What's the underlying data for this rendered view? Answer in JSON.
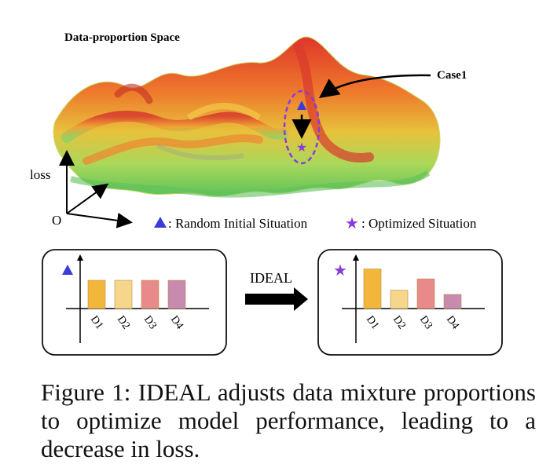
{
  "surface": {
    "title": "Data-proportion Space",
    "case_label": "Case1",
    "axis_y_label": "loss",
    "origin_label": "O"
  },
  "legend": {
    "triangle_text": ": Random Initial Situation",
    "star_text": ": Optimized Situation",
    "triangle_color": "#3b3bd9",
    "star_color": "#8a3bd9"
  },
  "arrow_label": "IDEAL",
  "chart_data": [
    {
      "type": "bar",
      "categories": [
        "D1",
        "D2",
        "D3",
        "D4"
      ],
      "values": [
        1.0,
        1.0,
        1.0,
        1.0
      ],
      "colors": [
        "#f2b63a",
        "#f6d68a",
        "#e88a8a",
        "#c98ab0"
      ],
      "marker": "triangle"
    },
    {
      "type": "bar",
      "categories": [
        "D1",
        "D2",
        "D3",
        "D4"
      ],
      "values": [
        1.4,
        0.65,
        1.05,
        0.5
      ],
      "colors": [
        "#f2b63a",
        "#f6d68a",
        "#e88a8a",
        "#c98ab0"
      ],
      "marker": "star"
    }
  ],
  "caption": "Figure 1: IDEAL adjusts data mixture proportions to optimize model performance, leading to a decrease in loss."
}
